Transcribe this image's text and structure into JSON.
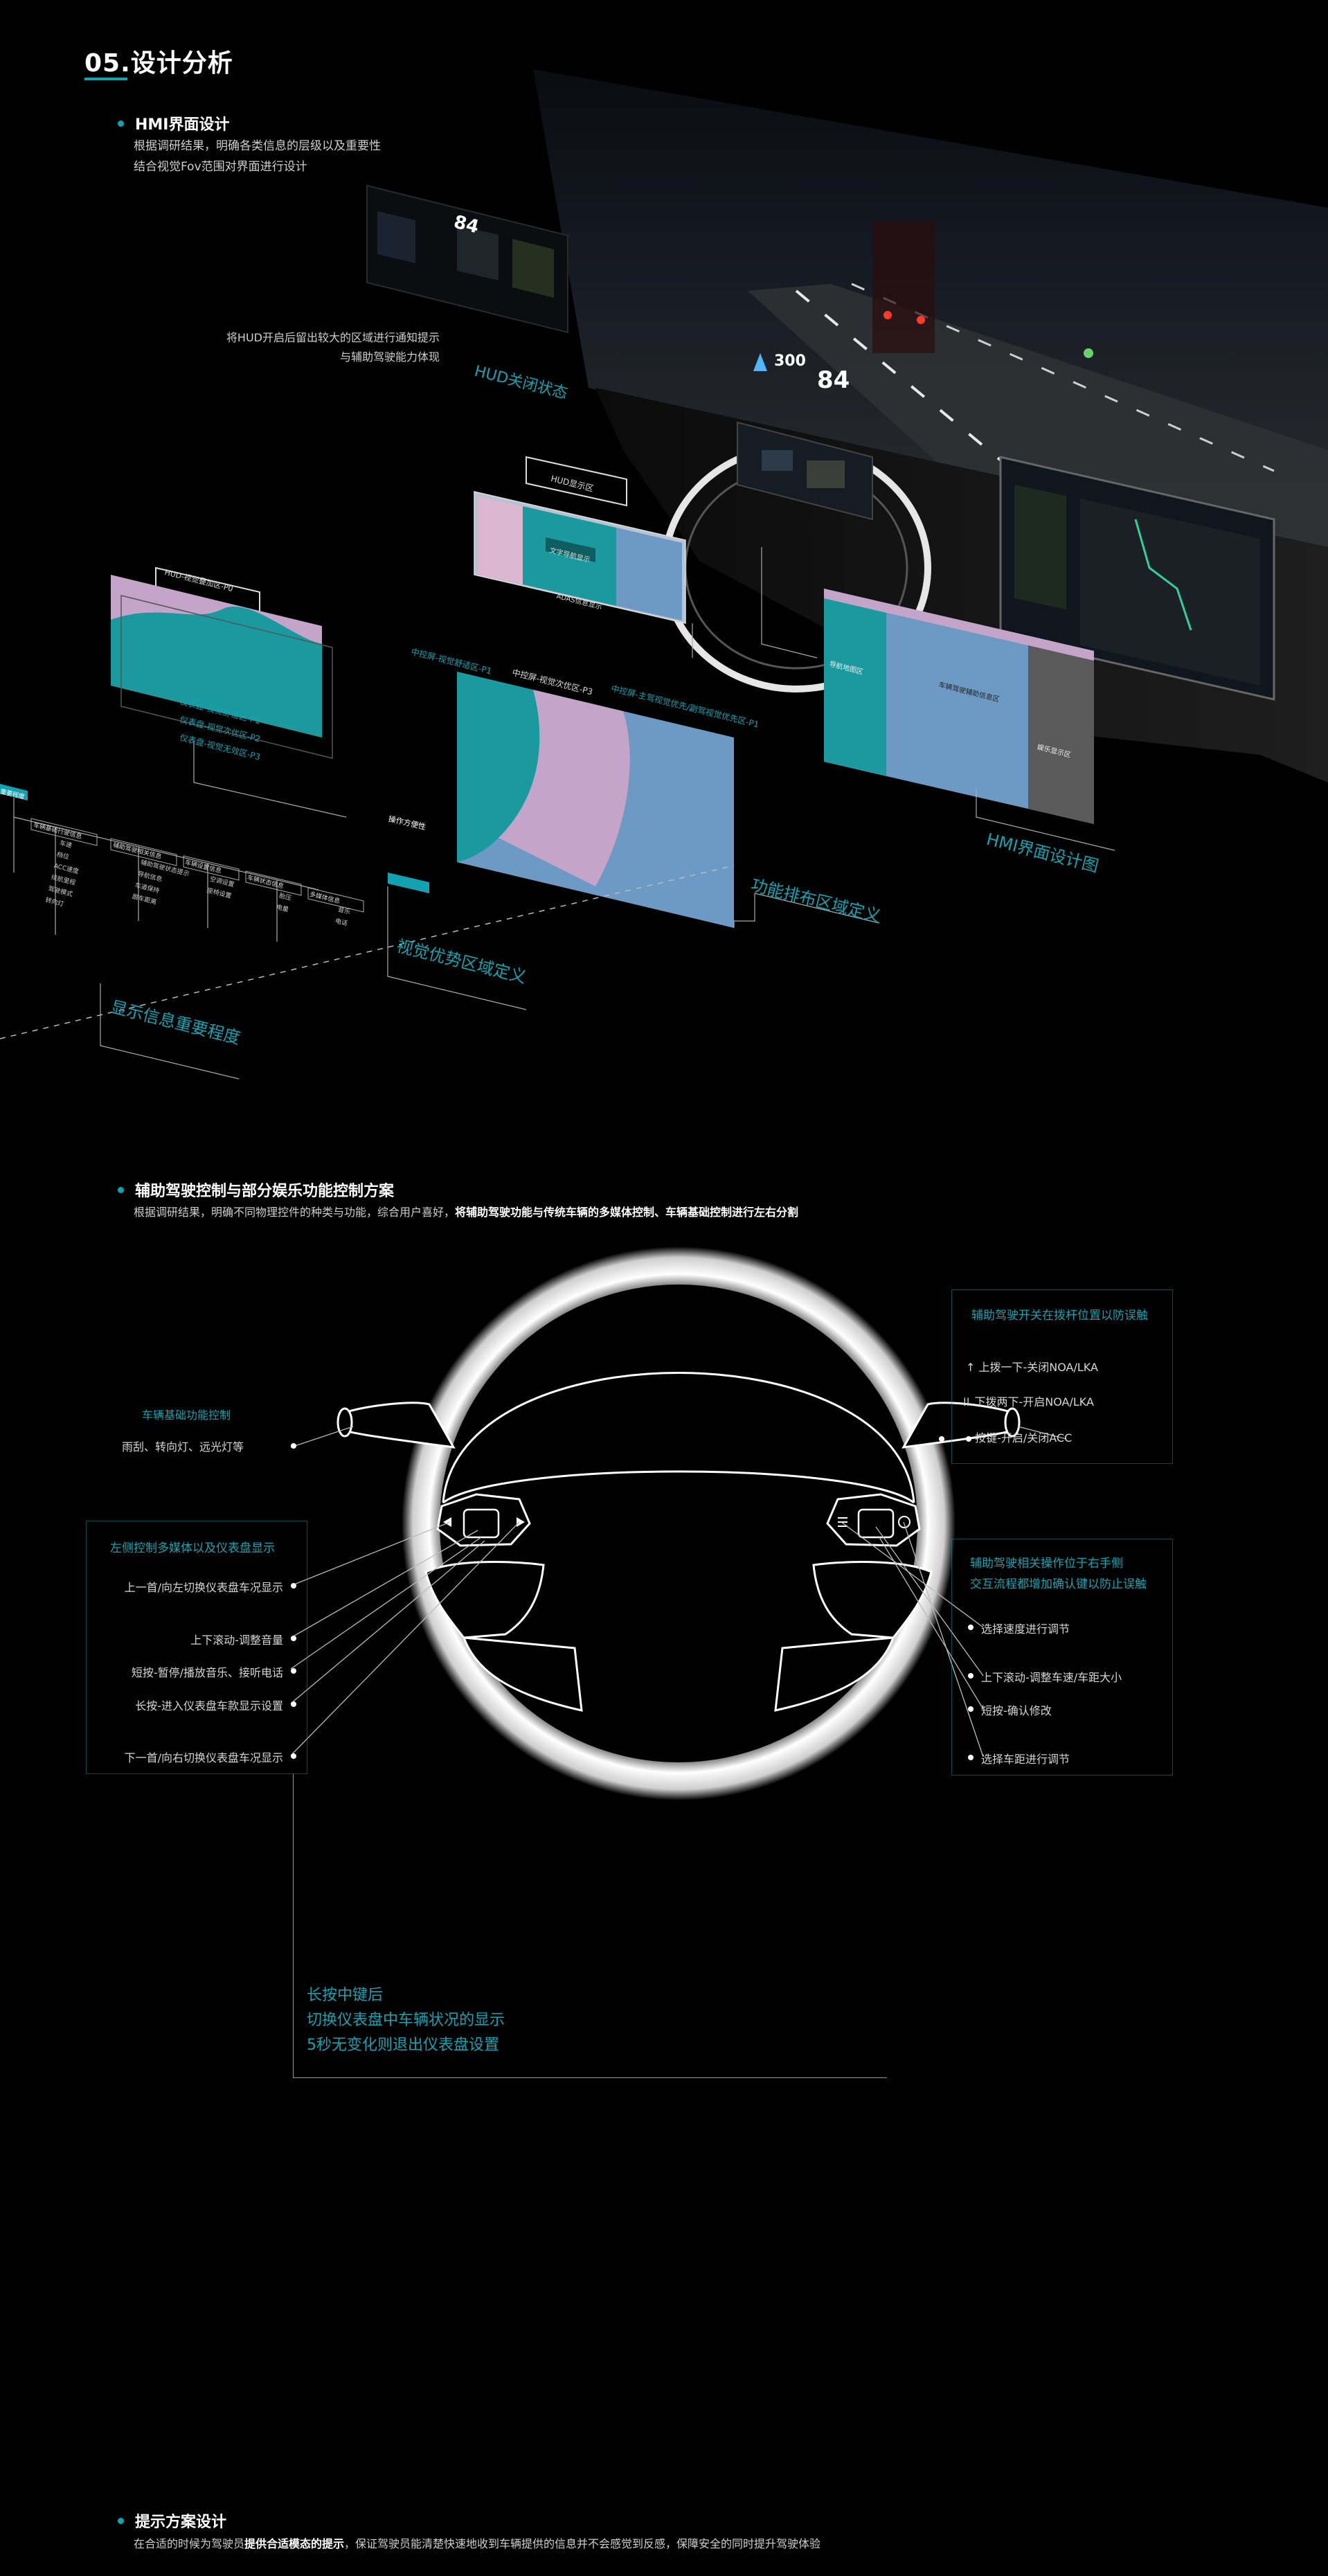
{
  "section": {
    "title": "05.设计分析"
  },
  "hmi": {
    "heading": "HMI界面设计",
    "desc_line1": "根据调研结果，明确各类信息的层级以及重要性",
    "desc_line2": "结合视觉Fov范围对界面进行设计",
    "hud_note_line1": "将HUD开启后留出较大的区域进行通知提示",
    "hud_note_line2": "与辅助驾驶能力体现",
    "hud_closed_label": "HUD关闭状态",
    "hud_display_label": "HUD显示区",
    "hud_overlay_label": "HUD-视觉叠加区-P0",
    "hud_overlay_items": [
      "仪表盘-视觉舒适区-P1",
      "仪表盘-视觉次优区-P2",
      "仪表盘-视觉无效区-P3"
    ],
    "center_labels": [
      "中控屏-视觉舒适区-P1",
      "中控屏-视觉次优区-P3",
      "中控屏-主驾视觉优先/副驾视觉优先区-P1"
    ],
    "hud_text_items": [
      "文字导航显示",
      "ADAS信息显示",
      "文字导航区",
      "ADAS驾驶信息"
    ],
    "center_panel_items": [
      "导航地图区",
      "车辆驾驶辅助信息区",
      "娱乐显示区",
      "操作常用区"
    ],
    "layer_labels": [
      "显示信息重要程度",
      "视觉优势区域定义",
      "功能排布区域定义",
      "HMI界面设计图"
    ],
    "tree_tag": "重要程度",
    "tree_groups": [
      "车辆基础行驶信息",
      "辅助驾驶相关信息",
      "车辆设置信息",
      "车辆状态信息",
      "多媒体信息"
    ],
    "tree_items": [
      "车速",
      "档位",
      "ACC速度",
      "续航里程",
      "驾驶模式",
      "转向灯",
      "辅助驾驶状态提示",
      "导航信息",
      "车道保持",
      "跟车距离",
      "空调设置",
      "座椅设置",
      "胎压",
      "电量",
      "音乐",
      "电话"
    ],
    "view_tag": "操作方便性",
    "hud_big_speed": "84",
    "hud_small_speed": "300",
    "cluster_speed": "84"
  },
  "steering": {
    "heading": "辅助驾驶控制与部分娱乐功能控制方案",
    "desc_normal": "根据调研结果，明确不同物理控件的种类与功能，综合用户喜好，",
    "desc_bold": "将辅助驾驶功能与传统车辆的多媒体控制、车辆基础控制进行左右分割",
    "right_top_panel": {
      "title": "辅助驾驶开关在拨杆位置以防误触",
      "items": [
        "上拨一下-关闭NOA/LKA",
        "下拨两下-开启NOA/LKA",
        "按键-开启/关闭ACC"
      ]
    },
    "left_basic": {
      "title": "车辆基础功能控制",
      "item": "雨刮、转向灯、远光灯等"
    },
    "left_panel": {
      "title": "左侧控制多媒体以及仪表盘显示",
      "items": [
        "上一首/向左切换仪表盘车况显示",
        "上下滚动-调整音量",
        "短按-暂停/播放音乐、接听电话",
        "长按-进入仪表盘车款显示设置",
        "下一首/向右切换仪表盘车况显示"
      ]
    },
    "right_panel": {
      "title_line1": "辅助驾驶相关操作位于右手侧",
      "title_line2": "交互流程都增加确认键以防止误触",
      "items": [
        "选择速度进行调节",
        "上下滚动-调整车速/车距大小",
        "短按-确认修改",
        "选择车距进行调节"
      ]
    },
    "long_press_lines": [
      "长按中键后",
      "切换仪表盘中车辆状况的显示",
      "5秒无变化则退出仪表盘设置"
    ]
  },
  "hint": {
    "heading": "提示方案设计",
    "desc_normal1": "在合适的时候为驾驶员",
    "desc_bold": "提供合适模态的提示",
    "desc_normal2": "，保证驾驶员能清楚快速地收到车辆提供的信息并不会感觉到反感，保障安全的同时提升驾驶体验"
  },
  "colors": {
    "accent": "#12a3b2",
    "teal_block": "#1a9a9e",
    "lavender": "#c4a4c9",
    "blue": "#6d9ac4",
    "gray": "#5a5a5a",
    "bg": "#000000"
  }
}
